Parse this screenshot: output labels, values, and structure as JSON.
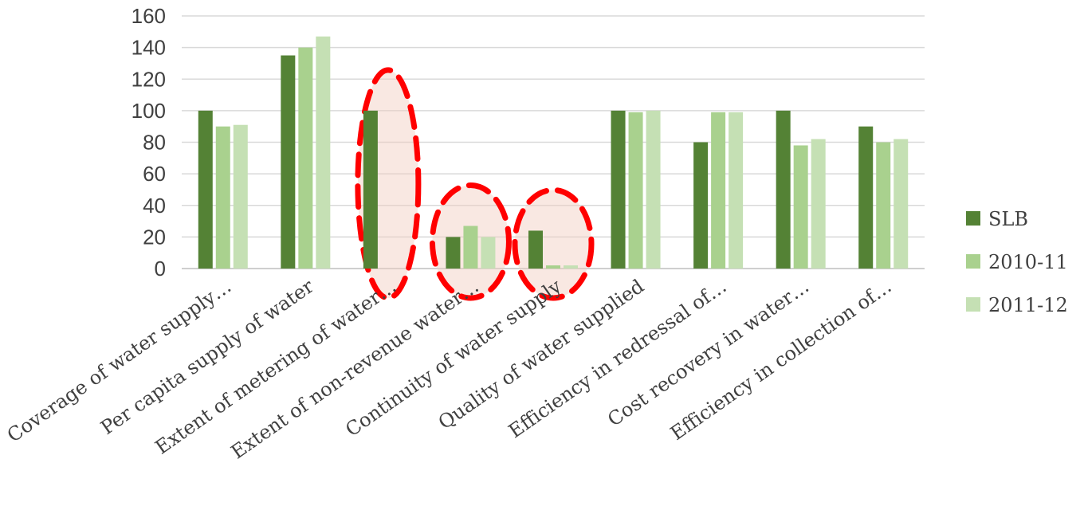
{
  "chart_data": {
    "type": "bar",
    "categories": [
      "Coverage of water supply…",
      "Per capita supply of water",
      "Extent of metering of water…",
      "Extent of non-revenue water…",
      "Continuity of water supply",
      "Quality of water supplied",
      "Efficiency in redressal of…",
      "Cost recovery in water…",
      "Efficiency in collection of…"
    ],
    "series": [
      {
        "name": "SLB",
        "color": "#548235",
        "values": [
          100,
          135,
          100,
          20,
          24,
          100,
          80,
          100,
          90
        ]
      },
      {
        "name": "2010-11",
        "color": "#a9d18e",
        "values": [
          90,
          140,
          0,
          27,
          2,
          99,
          99,
          78,
          80
        ]
      },
      {
        "name": "2011-12",
        "color": "#c5e0b4",
        "values": [
          91,
          147,
          0,
          20,
          2,
          100,
          99,
          82,
          82
        ]
      }
    ],
    "yticks": [
      "0",
      "20",
      "40",
      "60",
      "80",
      "100",
      "120",
      "140",
      "160"
    ],
    "ylim": [
      0,
      160
    ],
    "grid": true,
    "legend_position": "right",
    "highlights": [
      {
        "category_index": 2,
        "style": "red dashed ellipse"
      },
      {
        "category_index": 3,
        "style": "red dashed ellipse"
      },
      {
        "category_index": 4,
        "style": "red dashed ellipse"
      }
    ]
  }
}
